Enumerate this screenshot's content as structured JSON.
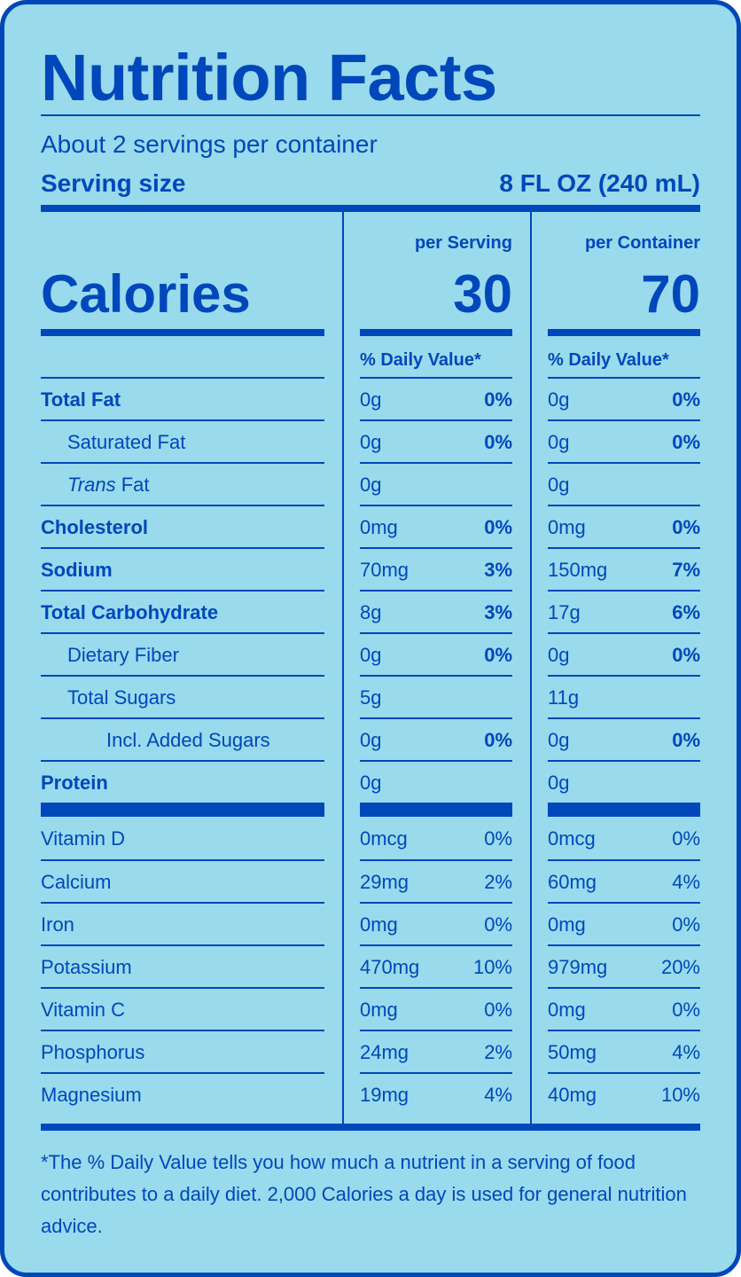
{
  "title": "Nutrition Facts",
  "servings_per_container": "About 2 servings per container",
  "serving_size_label": "Serving size",
  "serving_size_value": "8 FL OZ (240 mL)",
  "calories_label": "Calories",
  "columns": [
    {
      "header": "per Serving",
      "calories": "30",
      "dv_header": "% Daily Value*"
    },
    {
      "header": "per Container",
      "calories": "70",
      "dv_header": "% Daily Value*"
    }
  ],
  "nutrients": [
    {
      "name": "Total Fat",
      "bold": true,
      "indent": 0,
      "serving": {
        "amount": "0g",
        "dv": "0%"
      },
      "container": {
        "amount": "0g",
        "dv": "0%"
      }
    },
    {
      "name": "Saturated Fat",
      "indent": 1,
      "serving": {
        "amount": "0g",
        "dv": "0%"
      },
      "container": {
        "amount": "0g",
        "dv": "0%"
      }
    },
    {
      "name": "Fat",
      "italic_prefix": "Trans",
      "indent": 1,
      "serving": {
        "amount": "0g",
        "dv": ""
      },
      "container": {
        "amount": "0g",
        "dv": ""
      }
    },
    {
      "name": "Cholesterol",
      "bold": true,
      "indent": 0,
      "serving": {
        "amount": "0mg",
        "dv": "0%"
      },
      "container": {
        "amount": "0mg",
        "dv": "0%"
      }
    },
    {
      "name": "Sodium",
      "bold": true,
      "indent": 0,
      "serving": {
        "amount": "70mg",
        "dv": "3%"
      },
      "container": {
        "amount": "150mg",
        "dv": "7%"
      }
    },
    {
      "name": "Total Carbohydrate",
      "bold": true,
      "indent": 0,
      "serving": {
        "amount": "8g",
        "dv": "3%"
      },
      "container": {
        "amount": "17g",
        "dv": "6%"
      }
    },
    {
      "name": "Dietary Fiber",
      "indent": 1,
      "serving": {
        "amount": "0g",
        "dv": "0%"
      },
      "container": {
        "amount": "0g",
        "dv": "0%"
      }
    },
    {
      "name": "Total Sugars",
      "indent": 1,
      "serving": {
        "amount": "5g",
        "dv": ""
      },
      "container": {
        "amount": "11g",
        "dv": ""
      }
    },
    {
      "name": "Incl. Added Sugars",
      "indent": 2,
      "serving": {
        "amount": "0g",
        "dv": "0%"
      },
      "container": {
        "amount": "0g",
        "dv": "0%"
      }
    },
    {
      "name": "Protein",
      "bold": true,
      "indent": 0,
      "serving": {
        "amount": "0g",
        "dv": ""
      },
      "container": {
        "amount": "0g",
        "dv": ""
      }
    }
  ],
  "vitamins": [
    {
      "name": "Vitamin D",
      "serving": {
        "amount": "0mcg",
        "dv": "0%"
      },
      "container": {
        "amount": "0mcg",
        "dv": "0%"
      }
    },
    {
      "name": "Calcium",
      "serving": {
        "amount": "29mg",
        "dv": "2%"
      },
      "container": {
        "amount": "60mg",
        "dv": "4%"
      }
    },
    {
      "name": "Iron",
      "serving": {
        "amount": "0mg",
        "dv": "0%"
      },
      "container": {
        "amount": "0mg",
        "dv": "0%"
      }
    },
    {
      "name": "Potassium",
      "serving": {
        "amount": "470mg",
        "dv": "10%"
      },
      "container": {
        "amount": "979mg",
        "dv": "20%"
      }
    },
    {
      "name": "Vitamin C",
      "serving": {
        "amount": "0mg",
        "dv": "0%"
      },
      "container": {
        "amount": "0mg",
        "dv": "0%"
      }
    },
    {
      "name": "Phosphorus",
      "serving": {
        "amount": "24mg",
        "dv": "2%"
      },
      "container": {
        "amount": "50mg",
        "dv": "4%"
      }
    },
    {
      "name": "Magnesium",
      "serving": {
        "amount": "19mg",
        "dv": "4%"
      },
      "container": {
        "amount": "40mg",
        "dv": "10%"
      }
    }
  ],
  "footnote": "*The % Daily Value tells you how much a nutrient in a serving of food contributes to a daily diet. 2,000 Calories a day is used for general nutrition advice.",
  "colors": {
    "background": "#99daec",
    "ink": "#0047bb"
  }
}
